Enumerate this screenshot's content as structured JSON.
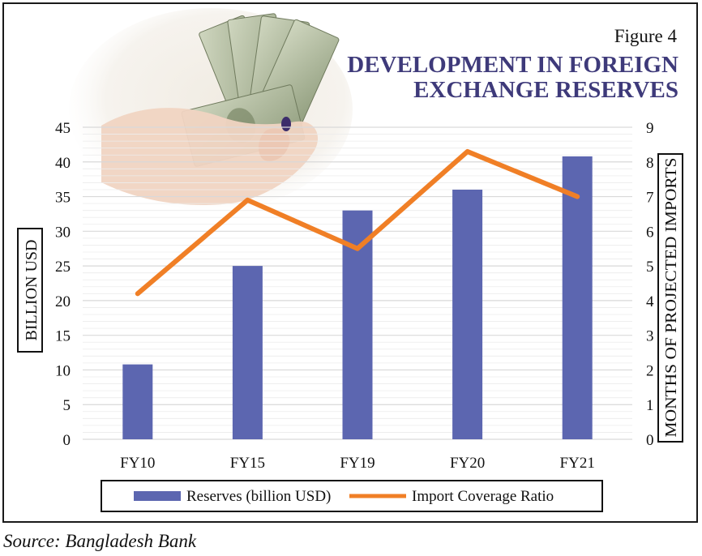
{
  "figure_label": "Figure 4",
  "source": "Source: Bangladesh Bank",
  "colors": {
    "bar": "#5c66b0",
    "line": "#f07f26",
    "title": "#3e3a7a",
    "grid": "#d9d9d9"
  },
  "chart_data": {
    "type": "bar",
    "title_lines": [
      "DEVELOPMENT IN FOREIGN",
      "EXCHANGE RESERVES"
    ],
    "categories": [
      "FY10",
      "FY15",
      "FY19",
      "FY20",
      "FY21"
    ],
    "ylabel": "BILLION USD",
    "y2label": "MONTHS OF PROJECTED IMPORTS",
    "ylim": [
      0,
      45
    ],
    "y2lim": [
      0,
      9
    ],
    "yticks": [
      "0",
      "5",
      "10",
      "15",
      "20",
      "25",
      "30",
      "35",
      "40",
      "45"
    ],
    "y2ticks": [
      "0",
      "1",
      "2",
      "3",
      "4",
      "5",
      "6",
      "7",
      "8",
      "9"
    ],
    "series": [
      {
        "name": "Reserves (billion USD)",
        "type": "bar",
        "axis": "left",
        "values": [
          10.8,
          25,
          33,
          36,
          40.8
        ]
      },
      {
        "name": "Import Coverage Ratio",
        "type": "line",
        "axis": "right",
        "values": [
          4.2,
          6.9,
          5.5,
          8.3,
          7.0
        ]
      }
    ],
    "legend_position": "bottom",
    "grid": true
  }
}
